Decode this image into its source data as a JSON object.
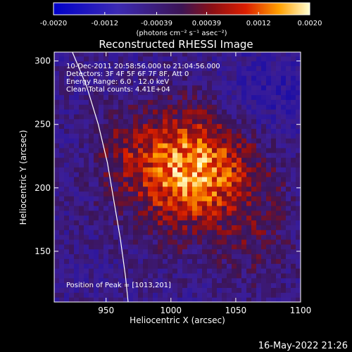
{
  "chart_data": {
    "type": "heatmap",
    "title": "Reconstructed RHESSI Image",
    "xlabel": "Heliocentric X (arcsec)",
    "ylabel": "Heliocentric Y (arcsec)",
    "xlim": [
      910,
      1100
    ],
    "ylim": [
      110,
      307
    ],
    "x_ticks": [
      950,
      1000,
      1050,
      1100
    ],
    "y_ticks": [
      150,
      200,
      250,
      300
    ],
    "x_tick_labels": [
      "950",
      "1000",
      "1050",
      "1100"
    ],
    "y_tick_labels": [
      "150",
      "200",
      "250",
      "300"
    ],
    "colorbar": {
      "ticks": [
        -0.002,
        -0.0012,
        -0.00039,
        0.00039,
        0.0012,
        0.002
      ],
      "tick_labels": [
        "-0.0020",
        "-0.0012",
        "-0.00039",
        "0.00039",
        "0.0012",
        "0.0020"
      ],
      "range": [
        -0.002,
        0.002
      ],
      "unit_label": "(photons cm⁻² s⁻¹ asec⁻²)"
    },
    "peak": {
      "x": 1013,
      "y": 201
    },
    "limb_curve": [
      [
        924,
        307
      ],
      [
        935,
        280
      ],
      [
        944,
        250
      ],
      [
        951,
        220
      ],
      [
        956,
        190
      ],
      [
        961,
        160
      ],
      [
        965,
        130
      ],
      [
        967,
        110
      ]
    ],
    "annotations": {
      "time": "10-Dec-2011 20:58:56.000 to 21:04:56.000",
      "detectors": "Detectors: 3F 4F 5F 6F 7F 8F, Att 0",
      "energy": "Energy Range: 6.0 - 12.0 keV",
      "clean": "Clean     Total counts: 4.41E+04",
      "peak_text": "Position of Peak = [1013,201]"
    }
  },
  "footer": {
    "date_stamp": "16-May-2022 21:26"
  },
  "colors": {
    "background": "#000000",
    "cmap_neg": "#1a0aa0",
    "cmap_zero": "#3c1454",
    "cmap_pos_mid": "#d21c00",
    "cmap_pos_high": "#ffa000",
    "cmap_max": "#ffffd2"
  }
}
